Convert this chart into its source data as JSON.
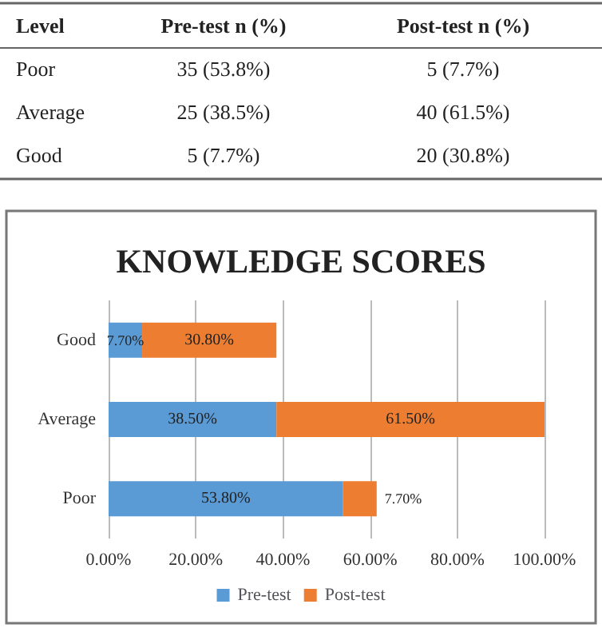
{
  "chart_data": {
    "type": "bar",
    "orientation": "horizontal",
    "stacked": true,
    "title": "KNOWLEDGE SCORES",
    "categories": [
      "Good",
      "Average",
      "Poor"
    ],
    "series": [
      {
        "name": "Pre-test",
        "color": "#5b9bd5",
        "values": [
          7.7,
          38.5,
          53.8
        ],
        "value_labels": [
          "7.70%",
          "38.50%",
          "53.80%"
        ]
      },
      {
        "name": "Post-test",
        "color": "#ed7d31",
        "values": [
          30.8,
          61.5,
          7.7
        ],
        "value_labels": [
          "30.80%",
          "61.50%",
          "7.70%"
        ]
      }
    ],
    "xlim": [
      0,
      100
    ],
    "xticks": [
      {
        "value": 0,
        "label": "0.00%"
      },
      {
        "value": 20,
        "label": "20.00%"
      },
      {
        "value": 40,
        "label": "40.00%"
      },
      {
        "value": 60,
        "label": "60.00%"
      },
      {
        "value": 80,
        "label": "80.00%"
      },
      {
        "value": 100,
        "label": "100.00%"
      }
    ],
    "grid": "x",
    "legend": "bottom",
    "annotations": [
      "Level",
      "Pre-test n (%)",
      "Post-test n (%)",
      "Poor",
      "35 (53.8%)",
      "5 (7.7%)",
      "Average",
      "25 (38.5%)",
      "40 (61.5%)",
      "Good",
      "5 (7.7%)",
      "20 (30.8%)"
    ]
  }
}
